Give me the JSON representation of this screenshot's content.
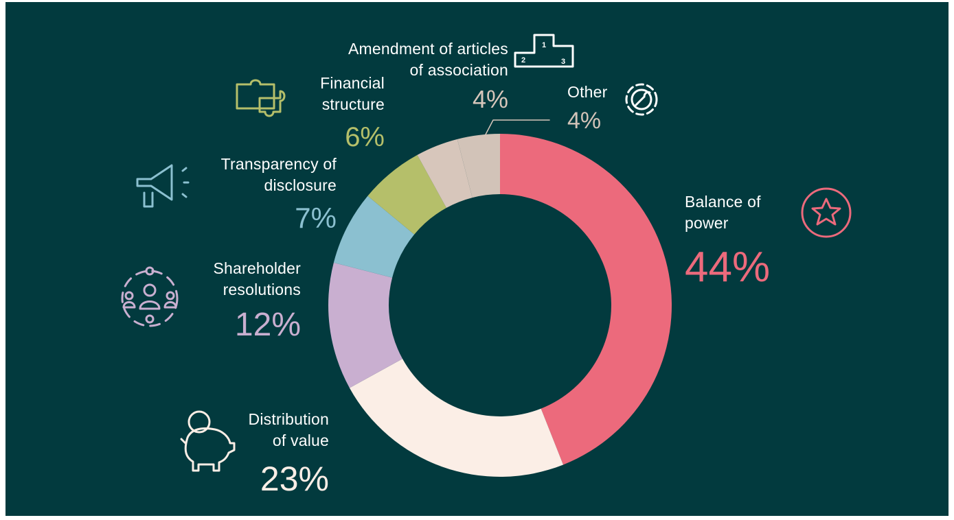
{
  "chart_data": {
    "type": "donut",
    "categories": [
      "Balance of\npower",
      "Distribution\nof value",
      "Shareholder\nresolutions",
      "Transparency of\ndisclosure",
      "Financial\nstructure",
      "Amendment of articles\nof association",
      "Other"
    ],
    "values": [
      44,
      23,
      12,
      7,
      6,
      4,
      4
    ],
    "value_labels": [
      "44%",
      "23%",
      "12%",
      "7%",
      "6%",
      "4%",
      "4%"
    ],
    "colors": [
      "#ec6a7c",
      "#fbeee6",
      "#c9afd0",
      "#8bc0d0",
      "#b5bf6a",
      "#d7c6bb",
      "#d2c3b8"
    ]
  }
}
